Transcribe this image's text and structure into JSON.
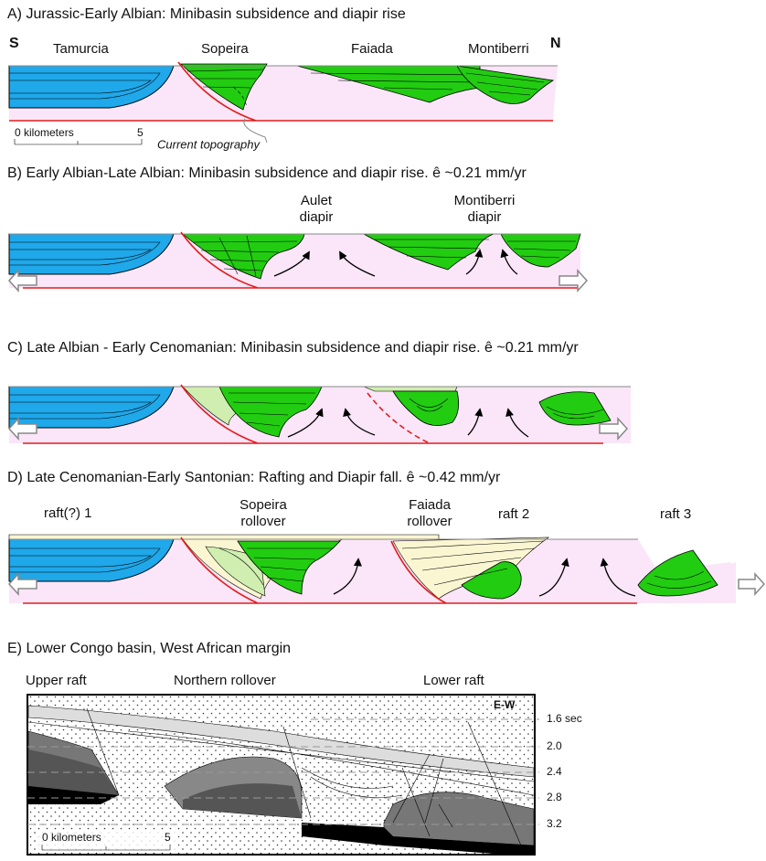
{
  "panels": [
    {
      "title": "A) Jurassic-Early Albian: Minibasin subsidence and diapir rise",
      "labels": [
        "S",
        "N",
        "Tamurcia",
        "Sopeira",
        "Faiada",
        "Montiberri",
        "0 kilometers",
        "5",
        "Current topography"
      ]
    },
    {
      "title": "B) Early Albian-Late Albian: Minibasin subsidence and diapir rise. ê ~0.21 mm/yr",
      "labels": [
        "Aulet",
        "diapir",
        "Montiberri",
        "diapir"
      ]
    },
    {
      "title": "C) Late Albian - Early Cenomanian: Minibasin subsidence and diapir rise. ê ~0.21 mm/yr"
    },
    {
      "title": "D) Late Cenomanian-Early Santonian: Rafting and Diapir fall. ê ~0.42 mm/yr",
      "labels": [
        "raft(?) 1",
        "Sopeira",
        "rollover",
        "Faiada",
        "rollover",
        "raft 2",
        "raft 3"
      ]
    },
    {
      "title": "E) Lower Congo basin, West African margin",
      "labels": [
        "Upper raft",
        "Northern rollover",
        "Lower raft",
        "E-W",
        "1.6 sec",
        "2.0",
        "2.4",
        "2.8",
        "3.2",
        "0 kilometers",
        "5"
      ]
    }
  ]
}
